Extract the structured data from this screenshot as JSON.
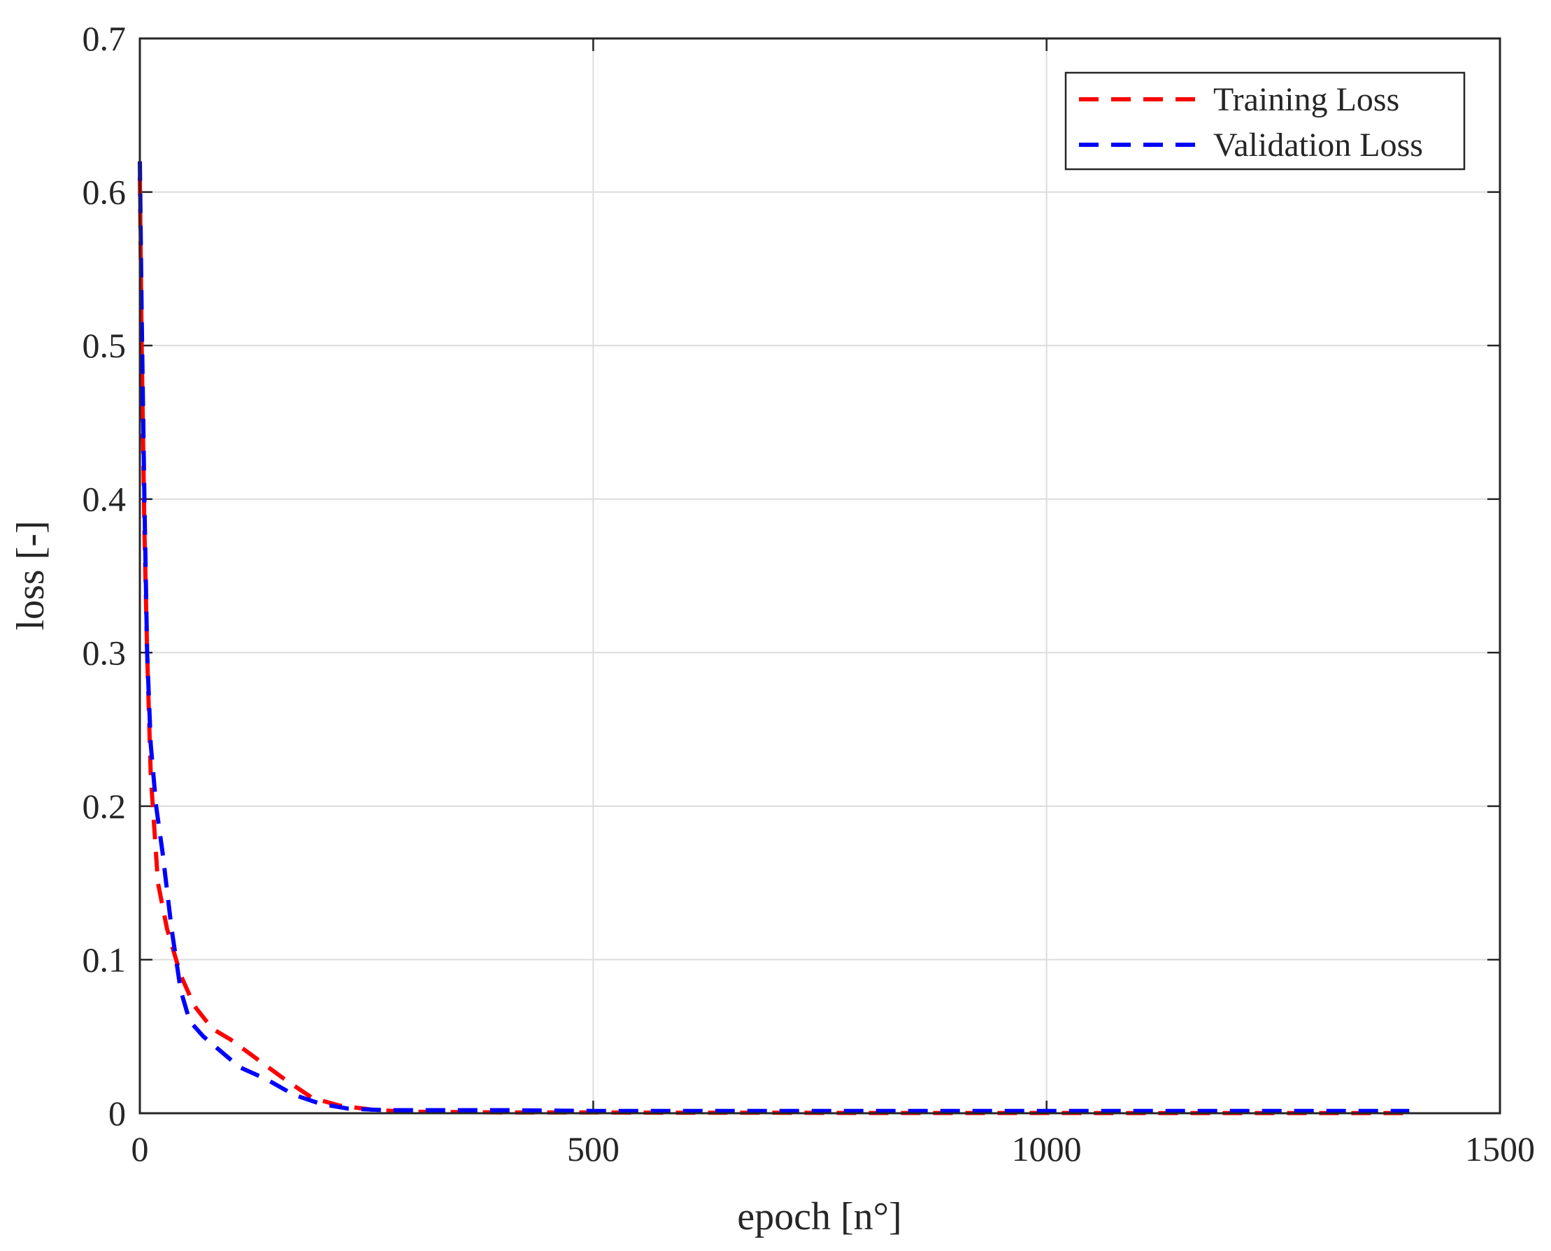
{
  "chart_data": {
    "type": "line",
    "title": "",
    "xlabel": "epoch [n°]",
    "ylabel": "loss [-]",
    "xlim": [
      0,
      1500
    ],
    "ylim": [
      0,
      0.7
    ],
    "xticks": [
      "0",
      "500",
      "1000",
      "1500"
    ],
    "yticks": [
      "0",
      "0.1",
      "0.2",
      "0.3",
      "0.4",
      "0.5",
      "0.6",
      "0.7"
    ],
    "grid": true,
    "legend_position": "top-right",
    "series": [
      {
        "name": "Training Loss",
        "color": "#ff0000",
        "style": "dashed",
        "x": [
          0,
          2,
          5,
          8,
          12,
          20,
          30,
          45,
          60,
          80,
          100,
          130,
          160,
          190,
          220,
          260,
          300,
          400,
          500,
          600,
          700,
          800,
          900,
          1000,
          1100,
          1200,
          1300,
          1400
        ],
        "y": [
          0.61,
          0.5,
          0.38,
          0.3,
          0.22,
          0.15,
          0.12,
          0.09,
          0.07,
          0.055,
          0.048,
          0.035,
          0.022,
          0.01,
          0.005,
          0.002,
          0.001,
          0.0005,
          0.0005,
          0.0003,
          0.0003,
          0.0002,
          0.0002,
          0.0002,
          0.0001,
          0.0001,
          0.0001,
          0.0001
        ]
      },
      {
        "name": "Validation Loss",
        "color": "#0000ff",
        "style": "dashed",
        "x": [
          0,
          2,
          5,
          8,
          12,
          18,
          25,
          35,
          45,
          55,
          70,
          90,
          110,
          140,
          170,
          200,
          230,
          270,
          300,
          400,
          500,
          600,
          700,
          800,
          900,
          1000,
          1100,
          1200,
          1300,
          1400
        ],
        "y": [
          0.62,
          0.52,
          0.4,
          0.3,
          0.24,
          0.2,
          0.17,
          0.12,
          0.08,
          0.06,
          0.05,
          0.04,
          0.03,
          0.022,
          0.012,
          0.006,
          0.003,
          0.002,
          0.002,
          0.002,
          0.0015,
          0.0015,
          0.0015,
          0.0015,
          0.0015,
          0.0015,
          0.0015,
          0.0015,
          0.0015,
          0.0015
        ]
      }
    ]
  }
}
